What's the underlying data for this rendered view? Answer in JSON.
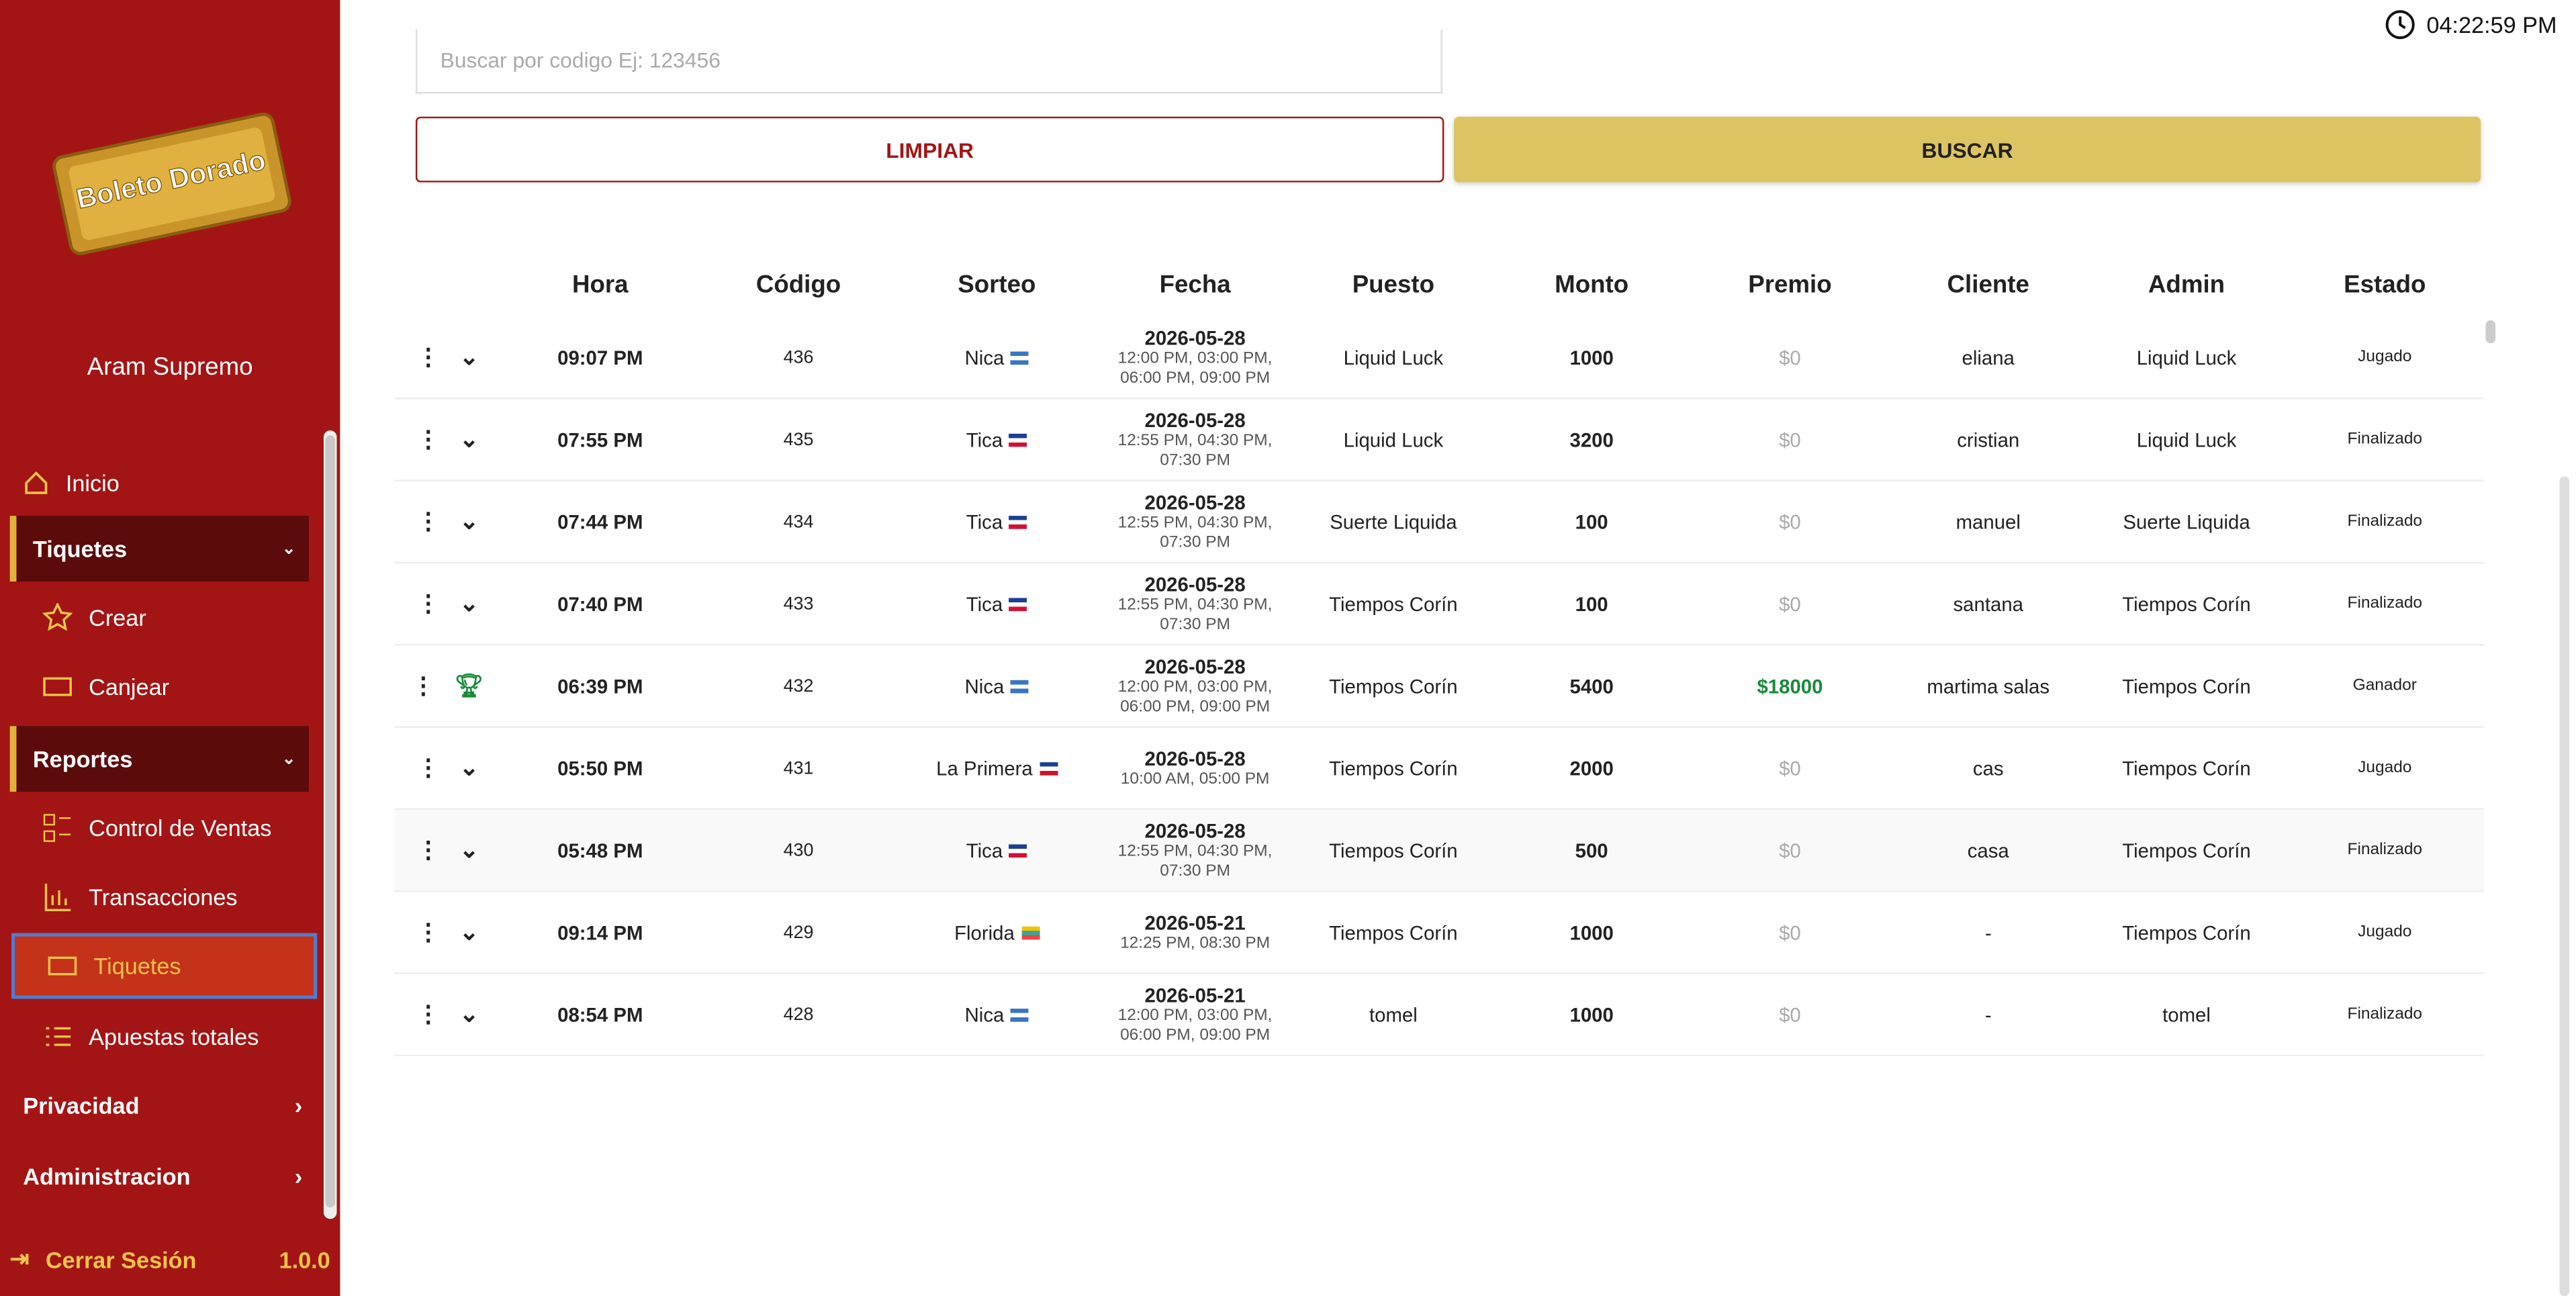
{
  "clock": "04:22:59 PM",
  "sidebar": {
    "logo": "Boleto Dorado",
    "user": "Aram Supremo",
    "inicio": "Inicio",
    "tiquetes_section": "Tiquetes",
    "crear": "Crear",
    "canjear": "Canjear",
    "reportes_section": "Reportes",
    "control_ventas": "Control de Ventas",
    "transacciones": "Transacciones",
    "tiquetes": "Tiquetes",
    "apuestas": "Apuestas totales",
    "privacidad": "Privacidad",
    "administracion": "Administracion",
    "logout": "Cerrar Sesión",
    "version": "1.0.0"
  },
  "search": {
    "placeholder": "Buscar por codigo Ej: 123456",
    "clear": "LIMPIAR",
    "search": "BUSCAR"
  },
  "table": {
    "headers": [
      "Hora",
      "Código",
      "Sorteo",
      "Fecha",
      "Puesto",
      "Monto",
      "Premio",
      "Cliente",
      "Admin",
      "Estado"
    ],
    "rows": [
      {
        "hora": "09:07 PM",
        "codigo": "436",
        "sorteo": "Nica",
        "fecha": "2026-05-28",
        "horarios": "12:00 PM, 03:00 PM, 06:00 PM, 09:00 PM",
        "puesto": "Liquid Luck",
        "monto": "1000",
        "premio": "$0",
        "cliente": "eliana",
        "admin": "Liquid Luck",
        "estado": "Jugado"
      },
      {
        "hora": "07:55 PM",
        "codigo": "435",
        "sorteo": "Tica",
        "fecha": "2026-05-28",
        "horarios": "12:55 PM, 04:30 PM, 07:30 PM",
        "puesto": "Liquid Luck",
        "monto": "3200",
        "premio": "$0",
        "cliente": "cristian",
        "admin": "Liquid Luck",
        "estado": "Finalizado"
      },
      {
        "hora": "07:44 PM",
        "codigo": "434",
        "sorteo": "Tica",
        "fecha": "2026-05-28",
        "horarios": "12:55 PM, 04:30 PM, 07:30 PM",
        "puesto": "Suerte Liquida",
        "monto": "100",
        "premio": "$0",
        "cliente": "manuel",
        "admin": "Suerte Liquida",
        "estado": "Finalizado"
      },
      {
        "hora": "07:40 PM",
        "codigo": "433",
        "sorteo": "Tica",
        "fecha": "2026-05-28",
        "horarios": "12:55 PM, 04:30 PM, 07:30 PM",
        "puesto": "Tiempos Corín",
        "monto": "100",
        "premio": "$0",
        "cliente": "santana",
        "admin": "Tiempos Corín",
        "estado": "Finalizado"
      },
      {
        "hora": "06:39 PM",
        "codigo": "432",
        "sorteo": "Nica",
        "fecha": "2026-05-28",
        "horarios": "12:00 PM, 03:00 PM, 06:00 PM, 09:00 PM",
        "puesto": "Tiempos Corín",
        "monto": "5400",
        "premio": "$18000",
        "cliente": "martima salas",
        "admin": "Tiempos Corín",
        "estado": "Ganador"
      },
      {
        "hora": "05:50 PM",
        "codigo": "431",
        "sorteo": "La Primera",
        "fecha": "2026-05-28",
        "horarios": "10:00 AM, 05:00 PM",
        "puesto": "Tiempos Corín",
        "monto": "2000",
        "premio": "$0",
        "cliente": "cas",
        "admin": "Tiempos Corín",
        "estado": "Jugado"
      },
      {
        "hora": "05:48 PM",
        "codigo": "430",
        "sorteo": "Tica",
        "fecha": "2026-05-28",
        "horarios": "12:55 PM, 04:30 PM, 07:30 PM",
        "puesto": "Tiempos Corín",
        "monto": "500",
        "premio": "$0",
        "cliente": "casa",
        "admin": "Tiempos Corín",
        "estado": "Finalizado"
      },
      {
        "hora": "09:14 PM",
        "codigo": "429",
        "sorteo": "Florida",
        "fecha": "2026-05-21",
        "horarios": "12:25 PM, 08:30 PM",
        "puesto": "Tiempos Corín",
        "monto": "1000",
        "premio": "$0",
        "cliente": "-",
        "admin": "Tiempos Corín",
        "estado": "Jugado"
      },
      {
        "hora": "08:54 PM",
        "codigo": "428",
        "sorteo": "Nica",
        "fecha": "2026-05-21",
        "horarios": "12:00 PM, 03:00 PM, 06:00 PM, 09:00 PM",
        "puesto": "tomel",
        "monto": "1000",
        "premio": "$0",
        "cliente": "-",
        "admin": "tomel",
        "estado": "Finalizado"
      }
    ]
  }
}
